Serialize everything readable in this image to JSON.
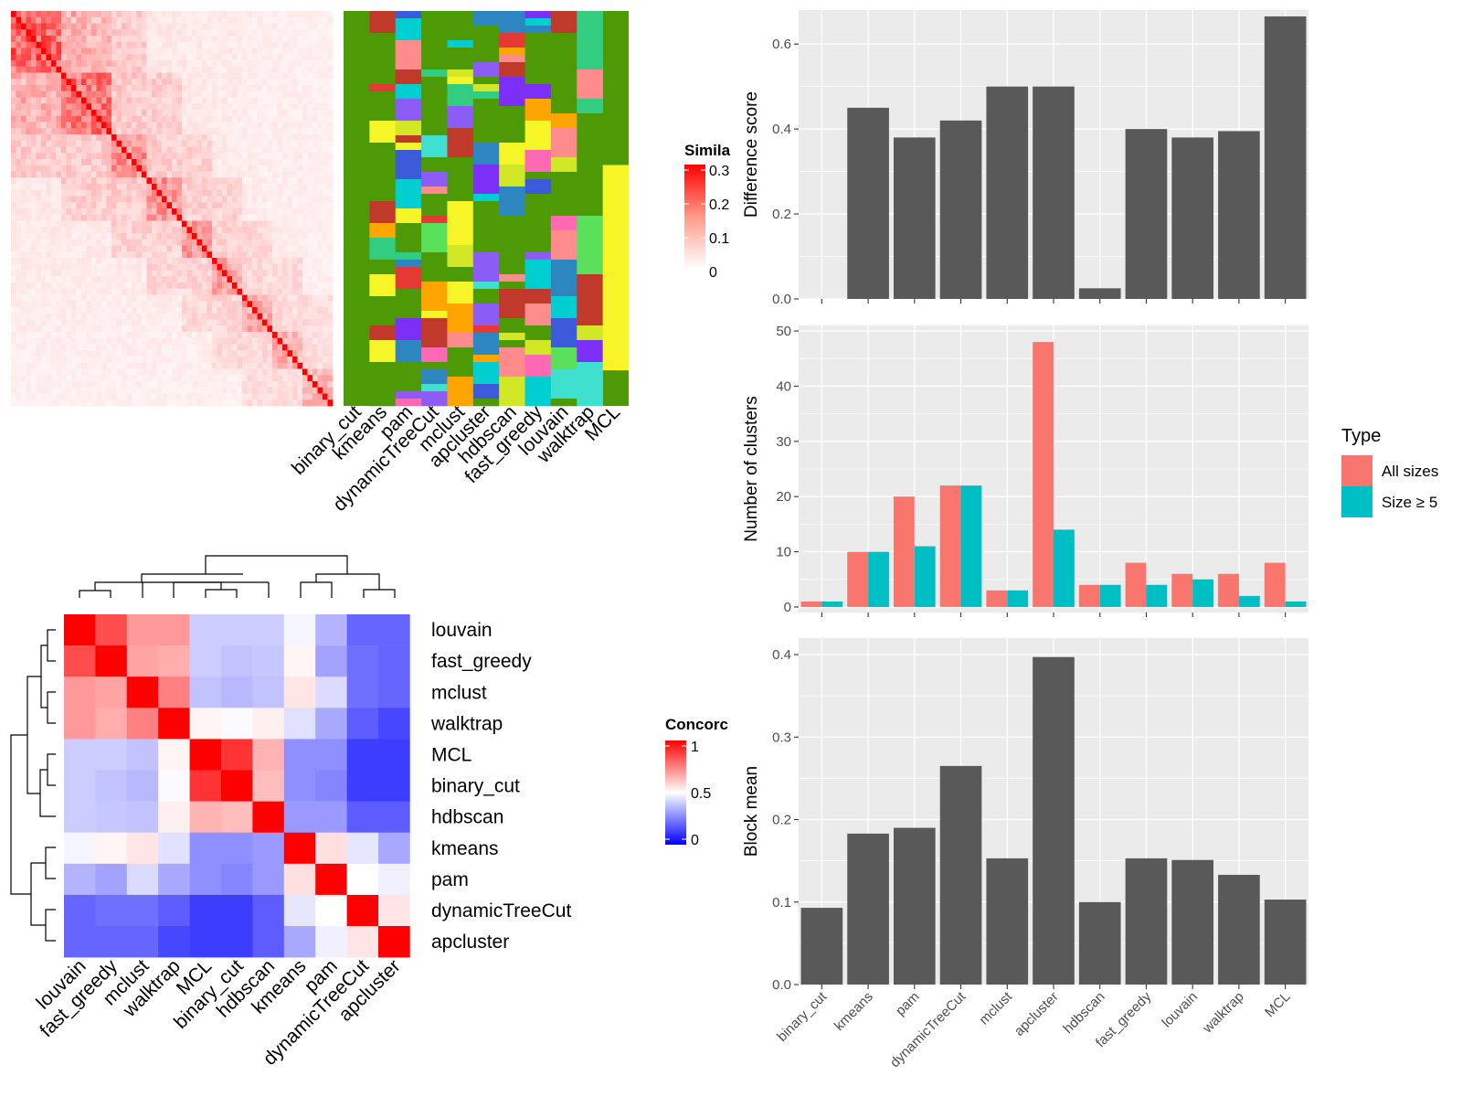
{
  "colors": {
    "panel_bg": "#EBEBEB",
    "grid": "#FFFFFF",
    "bar": "#595959",
    "all_sizes": "#F8766D",
    "size_ge5": "#00BFC4",
    "heat_high": "#FF0000",
    "heat_mid": "#FFFFFF",
    "heat_low": "#0000FF",
    "green_bg": "#4E9A06"
  },
  "chart_data": [
    {
      "id": "similarity_heatmap",
      "type": "heatmap",
      "legend_title": "Similarity",
      "legend_ticks": [
        "0.3",
        "0.2",
        "0.1",
        "0"
      ],
      "cluster_methods": [
        "binary_cut",
        "kmeans",
        "pam",
        "dynamicTreeCut",
        "mclust",
        "apcluster",
        "hdbscan",
        "fast_greedy",
        "louvain",
        "walktrap",
        "MCL"
      ]
    },
    {
      "id": "concordance_heatmap",
      "type": "heatmap",
      "legend_title": "Concordance",
      "legend_ticks": [
        "1",
        "0.5",
        "0"
      ],
      "rows": [
        "louvain",
        "fast_greedy",
        "mclust",
        "walktrap",
        "MCL",
        "binary_cut",
        "hdbscan",
        "kmeans",
        "pam",
        "dynamicTreeCut",
        "apcluster"
      ],
      "cols": [
        "louvain",
        "fast_greedy",
        "mclust",
        "walktrap",
        "MCL",
        "binary_cut",
        "hdbscan",
        "kmeans",
        "pam",
        "dynamicTreeCut",
        "apcluster"
      ],
      "values": [
        [
          1.0,
          0.85,
          0.7,
          0.7,
          0.4,
          0.4,
          0.4,
          0.48,
          0.35,
          0.2,
          0.2
        ],
        [
          0.85,
          1.0,
          0.68,
          0.66,
          0.4,
          0.38,
          0.39,
          0.52,
          0.32,
          0.22,
          0.2
        ],
        [
          0.7,
          0.68,
          1.0,
          0.75,
          0.38,
          0.36,
          0.38,
          0.55,
          0.43,
          0.22,
          0.2
        ],
        [
          0.7,
          0.66,
          0.75,
          1.0,
          0.52,
          0.49,
          0.53,
          0.44,
          0.33,
          0.18,
          0.14
        ],
        [
          0.4,
          0.4,
          0.38,
          0.52,
          1.0,
          0.9,
          0.65,
          0.28,
          0.28,
          0.12,
          0.12
        ],
        [
          0.4,
          0.38,
          0.36,
          0.49,
          0.9,
          1.0,
          0.63,
          0.28,
          0.26,
          0.12,
          0.12
        ],
        [
          0.4,
          0.39,
          0.38,
          0.53,
          0.65,
          0.63,
          1.0,
          0.3,
          0.3,
          0.18,
          0.18
        ],
        [
          0.48,
          0.52,
          0.55,
          0.44,
          0.28,
          0.28,
          0.3,
          1.0,
          0.56,
          0.45,
          0.33
        ],
        [
          0.35,
          0.32,
          0.43,
          0.33,
          0.28,
          0.26,
          0.3,
          0.56,
          1.0,
          0.5,
          0.47
        ],
        [
          0.2,
          0.22,
          0.22,
          0.18,
          0.12,
          0.12,
          0.18,
          0.45,
          0.5,
          1.0,
          0.55
        ],
        [
          0.2,
          0.2,
          0.2,
          0.14,
          0.12,
          0.12,
          0.18,
          0.33,
          0.47,
          0.55,
          1.0
        ]
      ]
    },
    {
      "id": "difference_score",
      "type": "bar",
      "categories": [
        "binary_cut",
        "kmeans",
        "pam",
        "dynamicTreeCut",
        "mclust",
        "apcluster",
        "hdbscan",
        "fast_greedy",
        "louvain",
        "walktrap",
        "MCL"
      ],
      "values": [
        0.0,
        0.45,
        0.38,
        0.42,
        0.5,
        0.5,
        0.025,
        0.4,
        0.38,
        0.395,
        0.665
      ],
      "ylabel": "Difference score",
      "ylim": [
        0,
        0.68
      ],
      "yticks": [
        0.0,
        0.2,
        0.4,
        0.6
      ],
      "ytick_labels": [
        "0.0",
        "0.2",
        "0.4",
        "0.6"
      ]
    },
    {
      "id": "number_of_clusters",
      "type": "bar",
      "categories": [
        "binary_cut",
        "kmeans",
        "pam",
        "dynamicTreeCut",
        "mclust",
        "apcluster",
        "hdbscan",
        "fast_greedy",
        "louvain",
        "walktrap",
        "MCL"
      ],
      "series": [
        {
          "name": "All sizes",
          "values": [
            1,
            10,
            20,
            22,
            3,
            48,
            4,
            8,
            6,
            6,
            8
          ]
        },
        {
          "name": "Size ≥ 5",
          "values": [
            1,
            10,
            11,
            22,
            3,
            14,
            4,
            4,
            5,
            2,
            1
          ]
        }
      ],
      "ylabel": "Number of clusters",
      "ylim": [
        -1,
        51
      ],
      "yticks": [
        0,
        10,
        20,
        30,
        40,
        50
      ],
      "ytick_labels": [
        "0",
        "10",
        "20",
        "30",
        "40",
        "50"
      ],
      "legend_title": "Type",
      "legend_placement": "right"
    },
    {
      "id": "block_mean",
      "type": "bar",
      "categories": [
        "binary_cut",
        "kmeans",
        "pam",
        "dynamicTreeCut",
        "mclust",
        "apcluster",
        "hdbscan",
        "fast_greedy",
        "louvain",
        "walktrap",
        "MCL"
      ],
      "values": [
        0.093,
        0.183,
        0.19,
        0.265,
        0.153,
        0.397,
        0.1,
        0.153,
        0.151,
        0.133,
        0.103
      ],
      "ylabel": "Block mean",
      "ylim": [
        0,
        0.42
      ],
      "yticks": [
        0.0,
        0.1,
        0.2,
        0.3,
        0.4
      ],
      "ytick_labels": [
        "0.0",
        "0.1",
        "0.2",
        "0.3",
        "0.4"
      ],
      "xtick_labels": [
        "binary_cut",
        "kmeans",
        "pam",
        "dynamicTreeCut",
        "mclust",
        "apcluster",
        "hdbscan",
        "fast_greedy",
        "louvain",
        "walktrap",
        "MCL"
      ]
    }
  ]
}
